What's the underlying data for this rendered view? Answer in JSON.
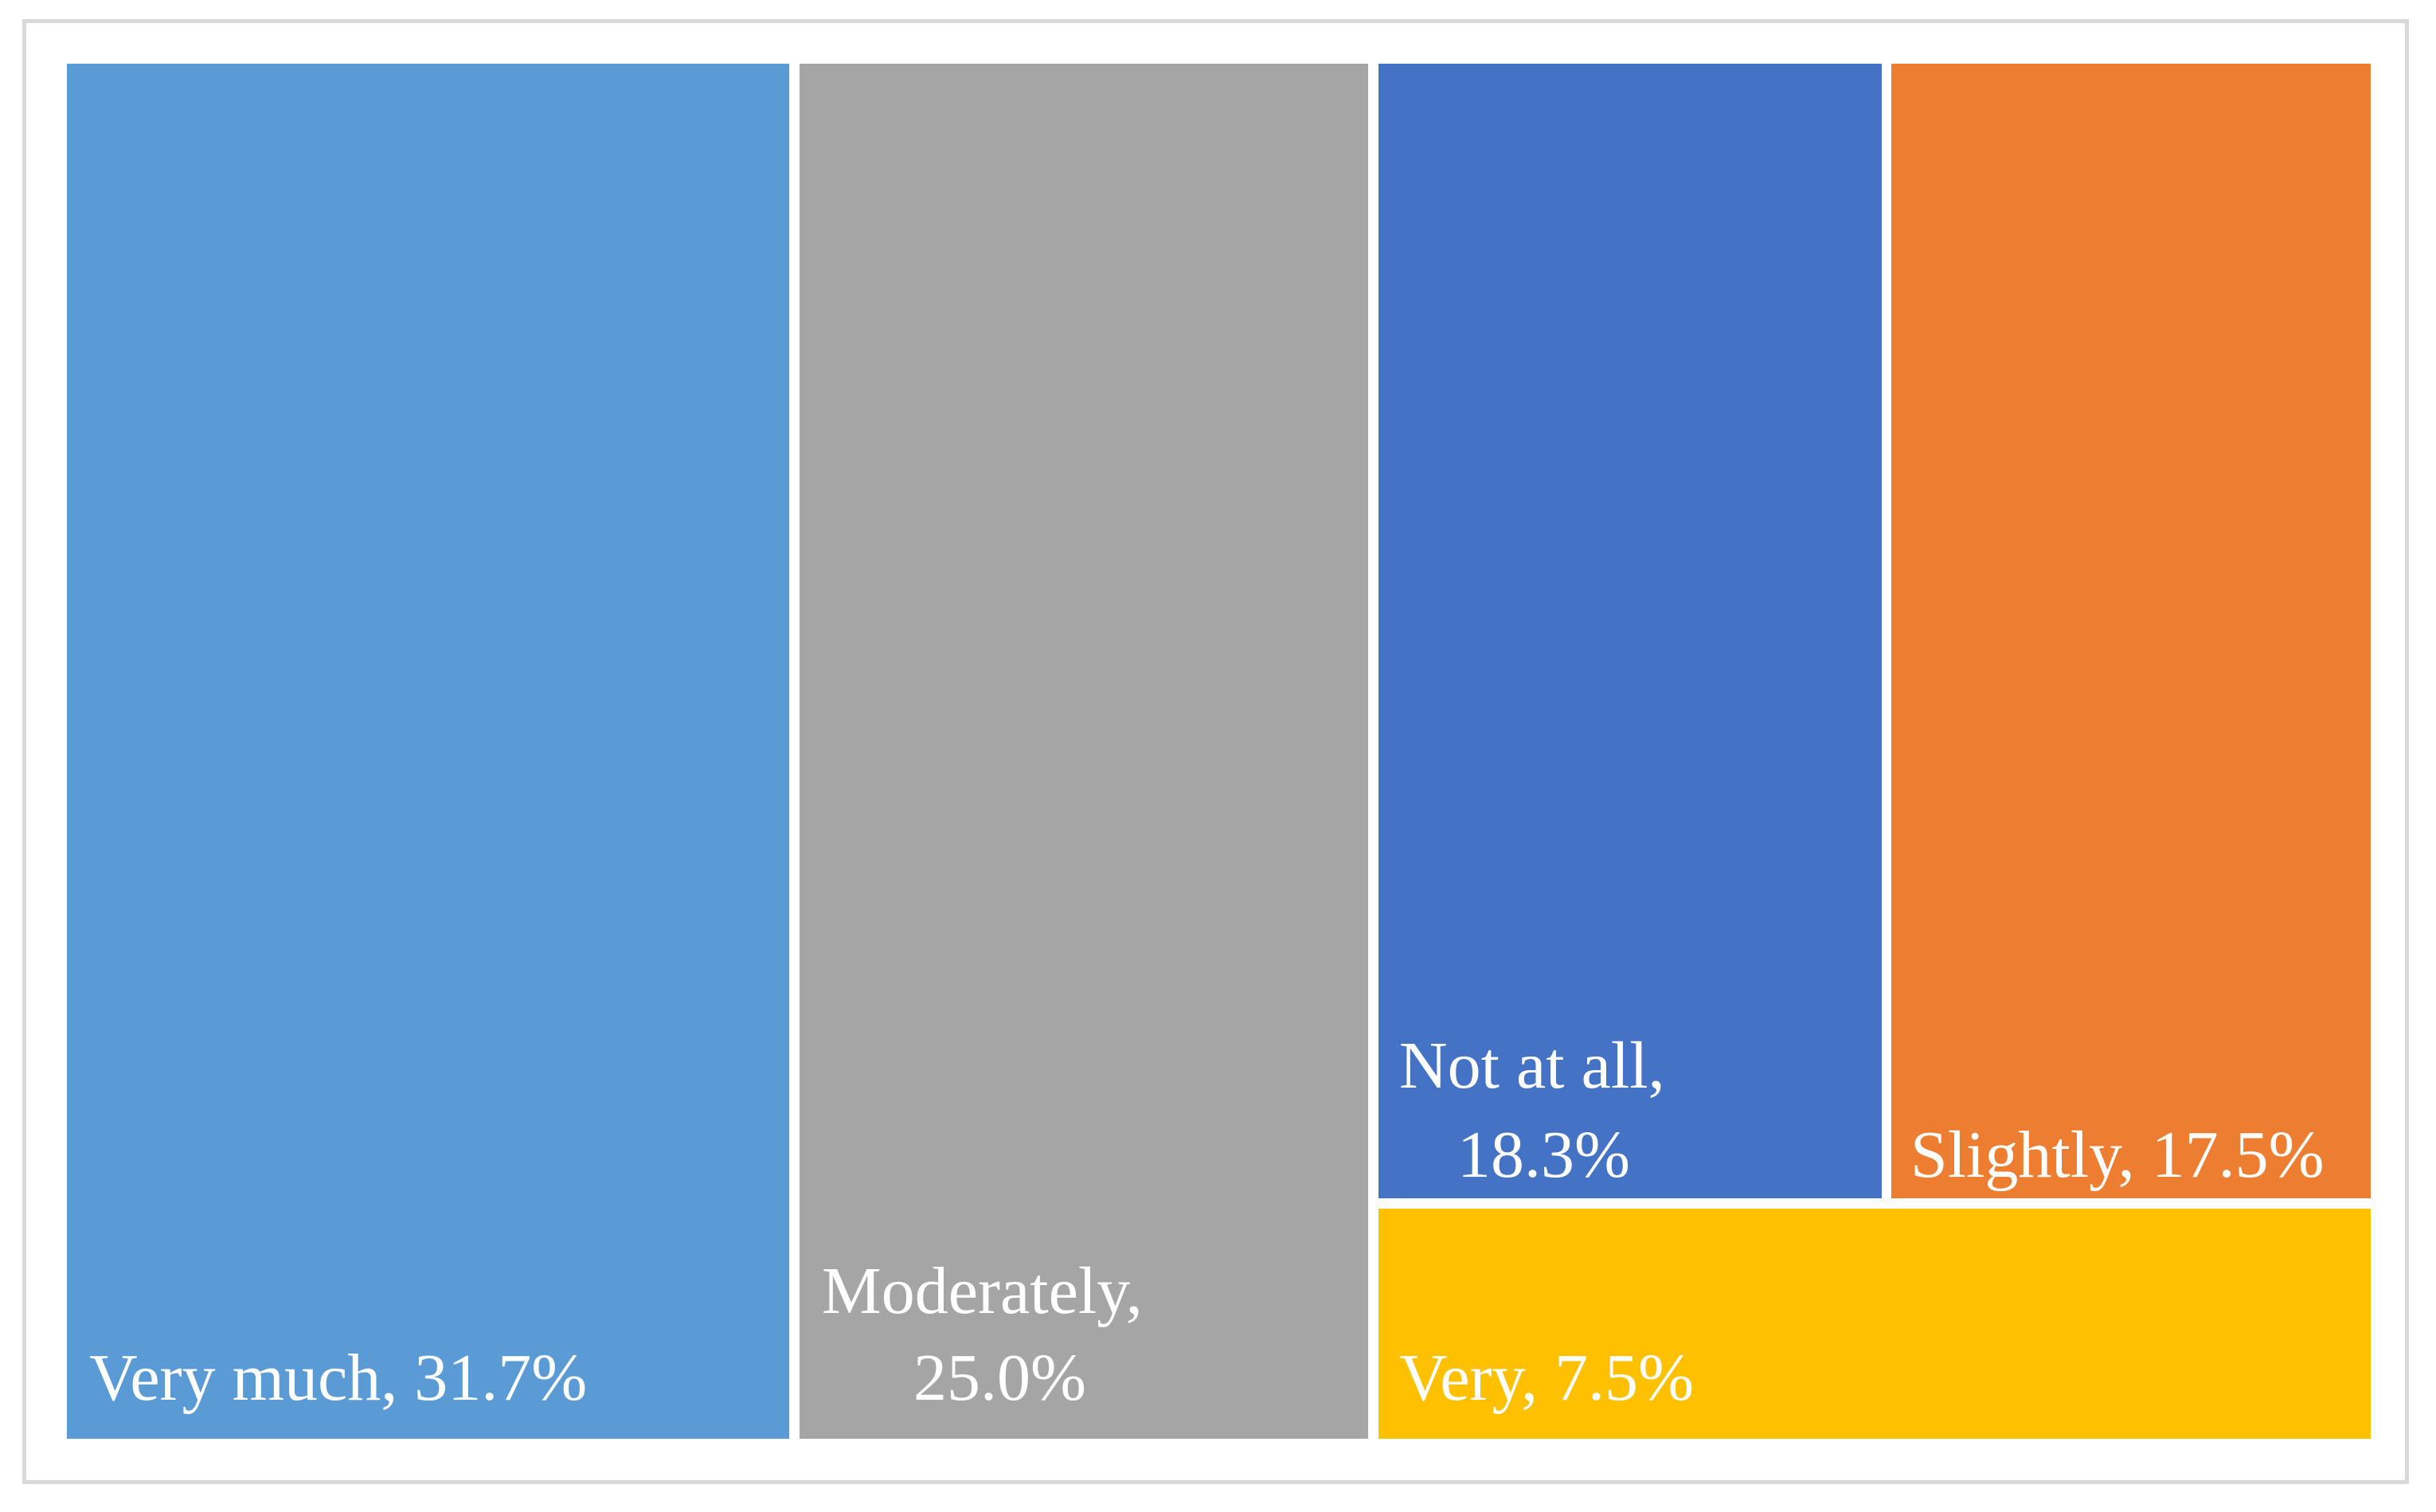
{
  "chart_data": {
    "type": "treemap",
    "title": "",
    "items": [
      {
        "name": "Very much",
        "value": 31.7,
        "label": "Very much, 31.7%",
        "color": "#5b9bd5"
      },
      {
        "name": "Moderately",
        "value": 25.0,
        "label_line1": "Moderately,",
        "label_line2": "25.0%",
        "color": "#a5a5a5"
      },
      {
        "name": "Not at all",
        "value": 18.3,
        "label_line1": "Not at all,",
        "label_line2": "18.3%",
        "color": "#4472c4"
      },
      {
        "name": "Slightly",
        "value": 17.5,
        "label": "Slightly, 17.5%",
        "color": "#ed7d31"
      },
      {
        "name": "Very",
        "value": 7.5,
        "label": "Very, 7.5%",
        "color": "#ffc000"
      }
    ]
  }
}
